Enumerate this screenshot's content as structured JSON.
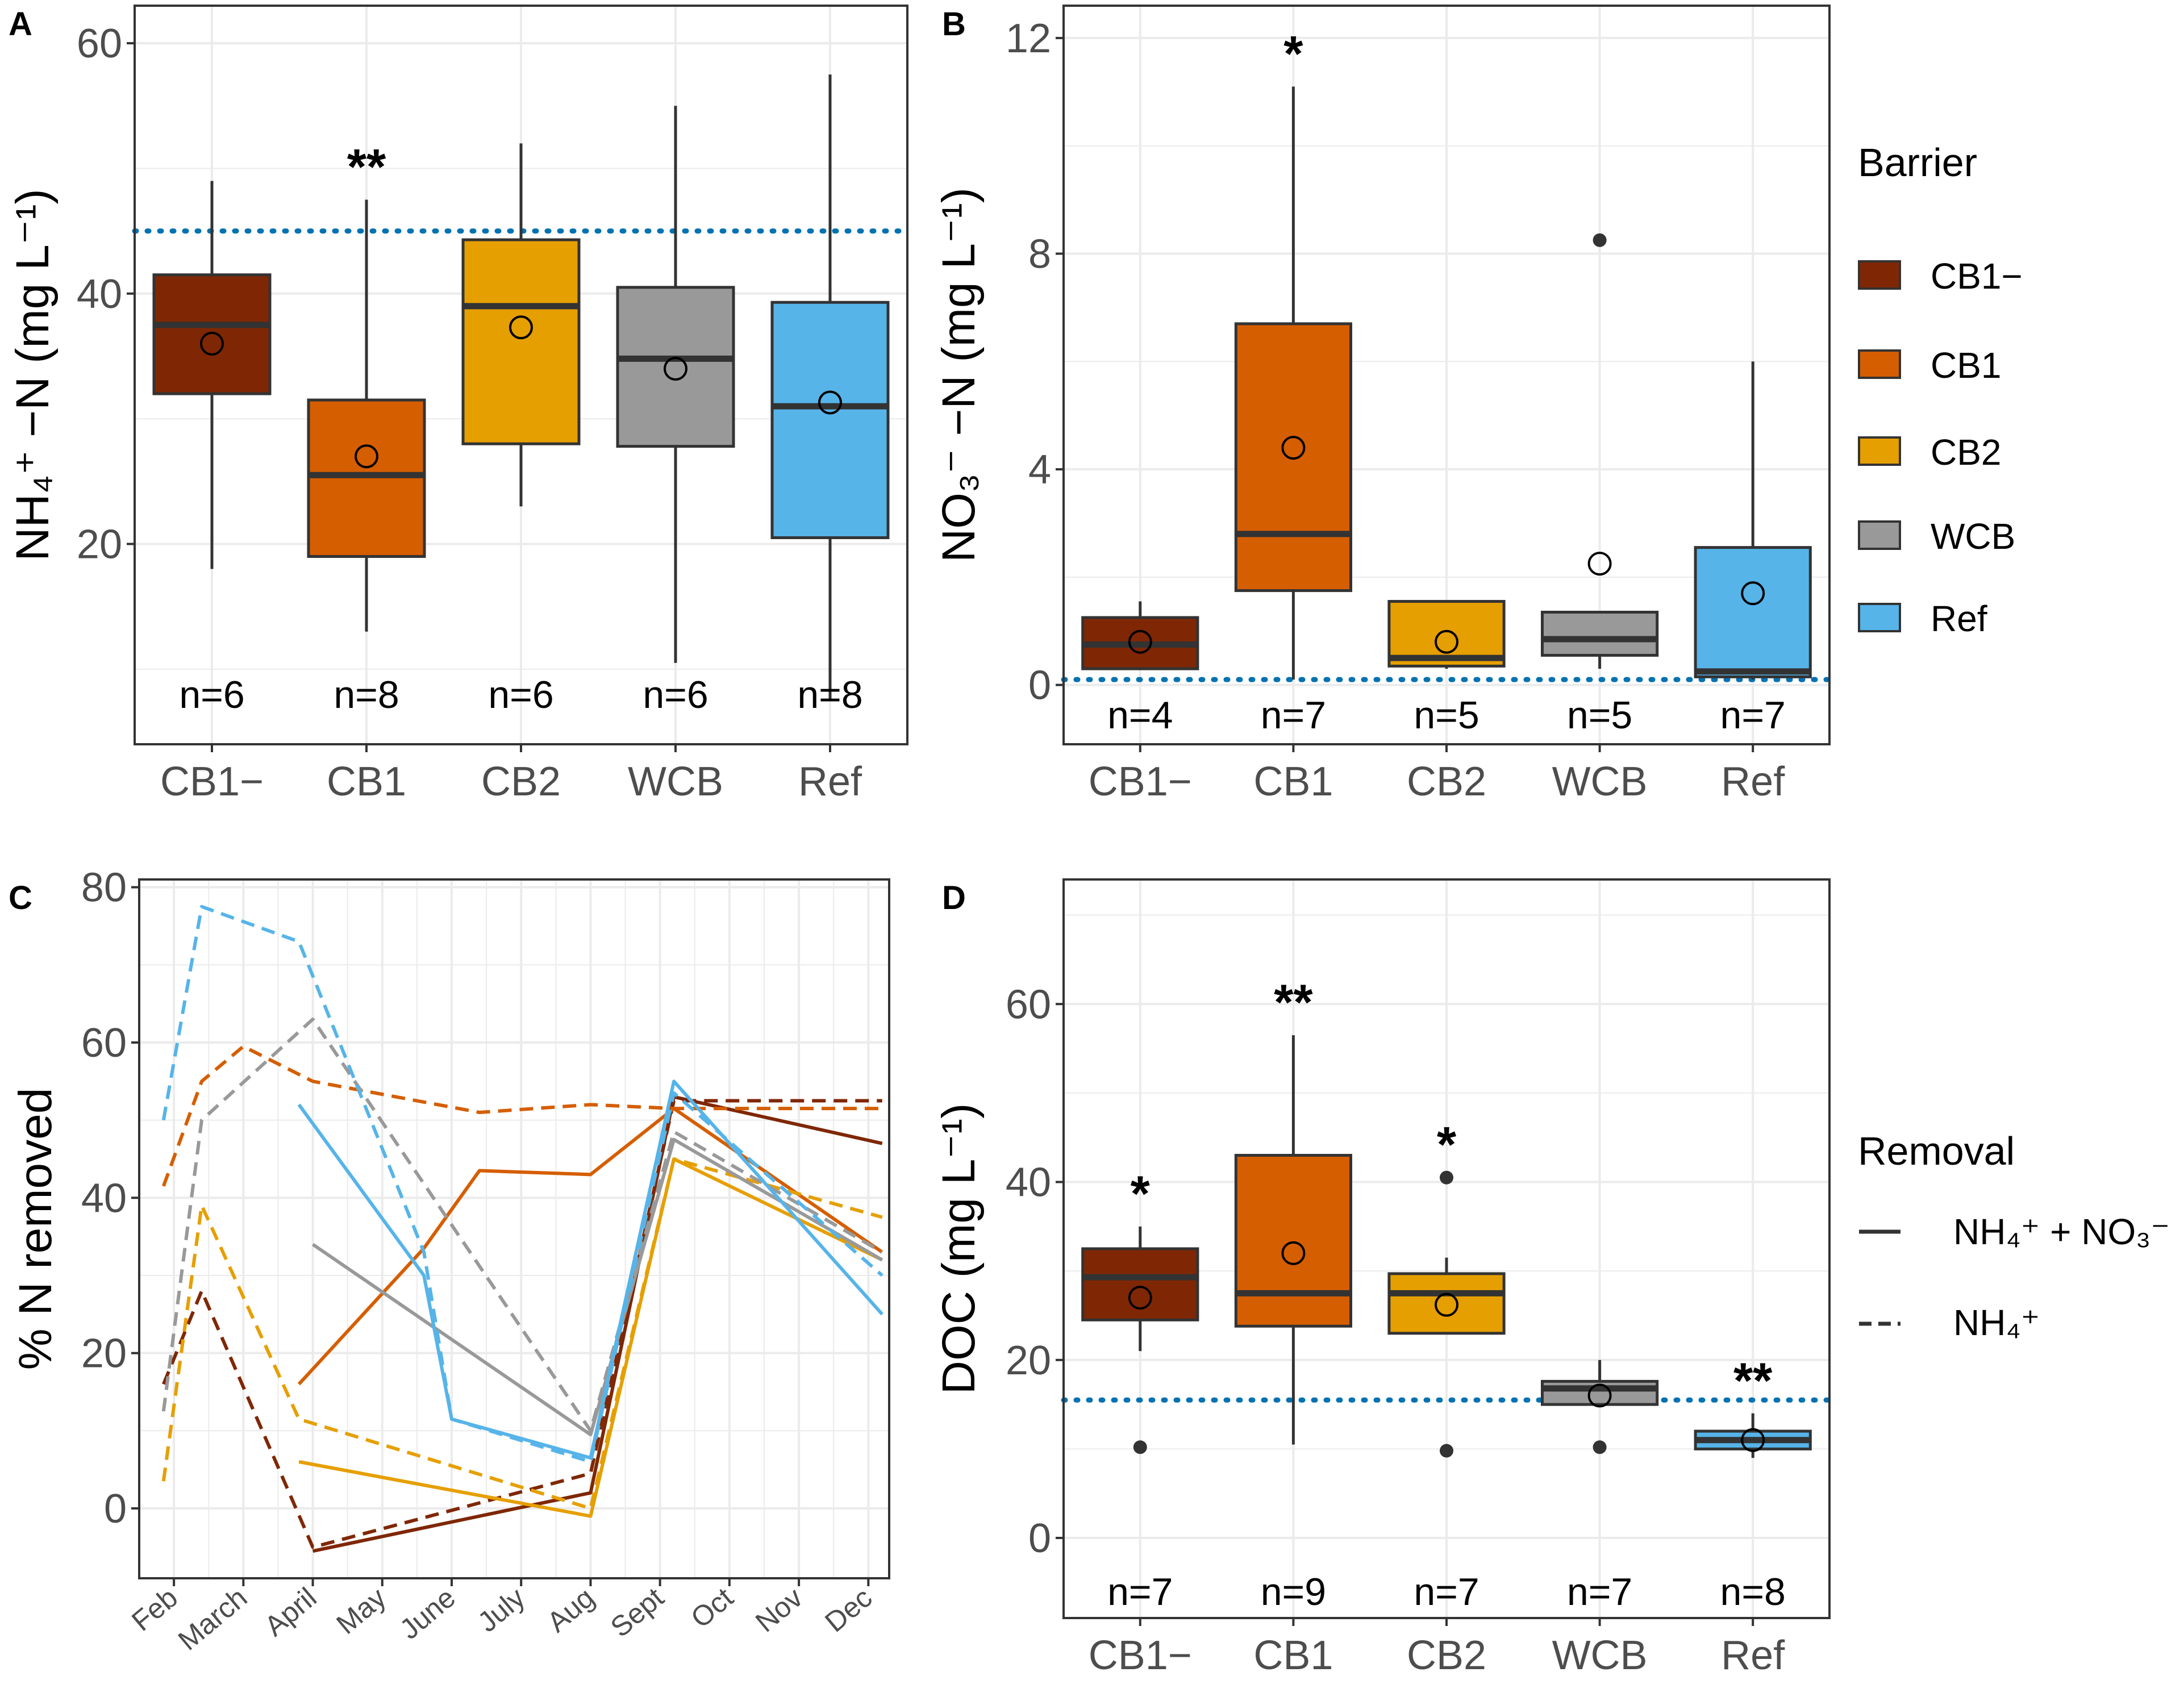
{
  "colors": {
    "CB1-": "#7f2704",
    "CB1": "#d55e00",
    "CB2": "#e69f00",
    "WCB": "#999999",
    "Ref": "#56b4e9",
    "reference_line": "#0072b2",
    "box_outline": "#333333",
    "grid": "#ebebeb"
  },
  "legend_barrier": {
    "title": "Barrier",
    "items": [
      "CB1−",
      "CB1",
      "CB2",
      "WCB",
      "Ref"
    ]
  },
  "legend_removal": {
    "title": "Removal",
    "items": [
      {
        "label": "NH₄⁺ + NO₃⁻",
        "linetype": "solid"
      },
      {
        "label": "NH₄⁺",
        "linetype": "dashed"
      }
    ]
  },
  "chart_data": [
    {
      "panel": "A",
      "type": "boxplot",
      "ylabel": "NH₄⁺ −N (mg L⁻¹)",
      "ylim": [
        4,
        63
      ],
      "yticks": [
        20,
        40,
        60
      ],
      "categories": [
        "CB1−",
        "CB1",
        "CB2",
        "WCB",
        "Ref"
      ],
      "series_keys": [
        "CB1-",
        "CB1",
        "CB2",
        "WCB",
        "Ref"
      ],
      "boxes": [
        {
          "low": 18,
          "q1": 32,
          "median": 37.5,
          "q3": 41.5,
          "high": 49,
          "mean": 36,
          "outliers": []
        },
        {
          "low": 13,
          "q1": 19,
          "median": 25.5,
          "q3": 31.5,
          "high": 47.5,
          "mean": 27,
          "outliers": []
        },
        {
          "low": 23,
          "q1": 28,
          "median": 39,
          "q3": 44.3,
          "high": 52,
          "mean": 37.3,
          "outliers": []
        },
        {
          "low": 10.5,
          "q1": 27.8,
          "median": 34.8,
          "q3": 40.5,
          "high": 55,
          "mean": 34,
          "outliers": []
        },
        {
          "low": 7.5,
          "q1": 20.5,
          "median": 31,
          "q3": 39.3,
          "high": 57.5,
          "mean": 31.3,
          "outliers": []
        }
      ],
      "n_labels": [
        "n=6",
        "n=8",
        "n=6",
        "n=6",
        "n=8"
      ],
      "n_label_y": 8,
      "significance": [
        "",
        "**",
        "",
        "",
        ""
      ],
      "hline": 45
    },
    {
      "panel": "B",
      "type": "boxplot",
      "ylabel": "NO₃⁻ −N (mg L⁻¹)",
      "ylim": [
        -1.1,
        12.6
      ],
      "yticks": [
        0,
        4,
        8,
        12
      ],
      "categories": [
        "CB1−",
        "CB1",
        "CB2",
        "WCB",
        "Ref"
      ],
      "series_keys": [
        "CB1-",
        "CB1",
        "CB2",
        "WCB",
        "Ref"
      ],
      "boxes": [
        {
          "low": 0.3,
          "q1": 0.3,
          "median": 0.75,
          "q3": 1.25,
          "high": 1.55,
          "mean": 0.8,
          "outliers": []
        },
        {
          "low": 0.1,
          "q1": 1.75,
          "median": 2.8,
          "q3": 6.7,
          "high": 11.1,
          "mean": 4.4,
          "outliers": []
        },
        {
          "low": 0.3,
          "q1": 0.35,
          "median": 0.5,
          "q3": 1.55,
          "high": 1.55,
          "mean": 0.8,
          "outliers": []
        },
        {
          "low": 0.3,
          "q1": 0.55,
          "median": 0.85,
          "q3": 1.35,
          "high": 1.35,
          "mean": 2.25,
          "outliers": [
            8.25
          ]
        },
        {
          "low": 0.1,
          "q1": 0.15,
          "median": 0.25,
          "q3": 2.55,
          "high": 6.0,
          "mean": 1.7,
          "outliers": []
        }
      ],
      "n_labels": [
        "n=4",
        "n=7",
        "n=5",
        "n=5",
        "n=7"
      ],
      "n_label_y": -0.55,
      "significance": [
        "",
        "*",
        "",
        "",
        ""
      ],
      "hline": 0.1
    },
    {
      "panel": "C",
      "type": "line",
      "ylabel": "% N removed",
      "ylim": [
        -9,
        81
      ],
      "yticks": [
        0,
        20,
        40,
        60,
        80
      ],
      "x": [
        1,
        2,
        3,
        4,
        5,
        6,
        7,
        8,
        9,
        10,
        11
      ],
      "xlim": [
        0.5,
        11.3
      ],
      "xtick_labels": [
        "Feb",
        "March",
        "April",
        "May",
        "June",
        "July",
        "Aug",
        "Sept",
        "Oct",
        "Nov",
        "Dec"
      ],
      "series": [
        {
          "name": "CB1−",
          "key": "CB1-",
          "removal": "NH₄⁺ + NO₃⁻",
          "x": [
            3,
            7,
            8.2,
            11.2
          ],
          "y": [
            -5.5,
            2,
            53,
            47
          ]
        },
        {
          "name": "CB1−",
          "key": "CB1-",
          "removal": "NH₄⁺",
          "x": [
            0.85,
            1.4,
            3,
            7,
            8.2,
            11.2
          ],
          "y": [
            16,
            28,
            -5,
            4.5,
            52.5,
            52.5
          ]
        },
        {
          "name": "CB1",
          "key": "CB1",
          "removal": "NH₄⁺ + NO₃⁻",
          "x": [
            2.8,
            4.6,
            5.4,
            7,
            8.2,
            11.2
          ],
          "y": [
            16,
            33.5,
            43.5,
            43,
            51.5,
            33
          ]
        },
        {
          "name": "CB1",
          "key": "CB1",
          "removal": "NH₄⁺",
          "x": [
            0.85,
            1.4,
            2.0,
            3,
            5.4,
            7,
            8.2,
            11.2
          ],
          "y": [
            41.5,
            55,
            59.5,
            55,
            51,
            52,
            51.5,
            51.5
          ]
        },
        {
          "name": "CB2",
          "key": "CB2",
          "removal": "NH₄⁺ + NO₃⁻",
          "x": [
            2.8,
            7,
            8.2,
            11.2
          ],
          "y": [
            6,
            -1,
            45,
            32
          ]
        },
        {
          "name": "CB2",
          "key": "CB2",
          "removal": "NH₄⁺",
          "x": [
            0.85,
            1.4,
            2.8,
            7,
            8.2,
            11.2
          ],
          "y": [
            3.5,
            39,
            11.5,
            0,
            45,
            37.5
          ]
        },
        {
          "name": "WCB",
          "key": "WCB",
          "removal": "NH₄⁺ + NO₃⁻",
          "x": [
            3,
            7,
            8.2,
            11.2
          ],
          "y": [
            34,
            9.5,
            47.5,
            32
          ]
        },
        {
          "name": "WCB",
          "key": "WCB",
          "removal": "NH₄⁺",
          "x": [
            0.85,
            1.4,
            3,
            7,
            8.2,
            11.2
          ],
          "y": [
            12.5,
            50,
            63,
            10,
            48.5,
            33
          ]
        },
        {
          "name": "Ref",
          "key": "Ref",
          "removal": "NH₄⁺ + NO₃⁻",
          "x": [
            2.8,
            4.6,
            5,
            7,
            8.2,
            11.2
          ],
          "y": [
            52,
            30,
            11.5,
            6.5,
            55,
            25
          ]
        },
        {
          "name": "Ref",
          "key": "Ref",
          "removal": "NH₄⁺",
          "x": [
            0.85,
            1.4,
            2.8,
            4.6,
            5,
            7,
            8.2,
            11.2
          ],
          "y": [
            50,
            77.5,
            73,
            33,
            11.5,
            6,
            53.5,
            30
          ]
        }
      ]
    },
    {
      "panel": "D",
      "type": "boxplot",
      "ylabel": "DOC (mg L⁻¹)",
      "ylim": [
        -9,
        74
      ],
      "yticks": [
        0,
        20,
        40,
        60
      ],
      "categories": [
        "CB1−",
        "CB1",
        "CB2",
        "WCB",
        "Ref"
      ],
      "series_keys": [
        "CB1-",
        "CB1",
        "CB2",
        "WCB",
        "Ref"
      ],
      "boxes": [
        {
          "low": 21,
          "q1": 24.5,
          "median": 29.3,
          "q3": 32.5,
          "high": 35,
          "mean": 27,
          "outliers": [
            10.2
          ]
        },
        {
          "low": 10.5,
          "q1": 23.8,
          "median": 27.5,
          "q3": 43,
          "high": 56.5,
          "mean": 32,
          "outliers": []
        },
        {
          "low": 23,
          "q1": 23,
          "median": 27.5,
          "q3": 29.7,
          "high": 31.5,
          "mean": 26.2,
          "outliers": [
            40.5,
            9.8
          ]
        },
        {
          "low": 15,
          "q1": 15,
          "median": 16.8,
          "q3": 17.6,
          "high": 20,
          "mean": 16,
          "outliers": [
            10.2
          ]
        },
        {
          "low": 9,
          "q1": 10,
          "median": 11,
          "q3": 12,
          "high": 14,
          "mean": 11,
          "outliers": []
        }
      ],
      "n_labels": [
        "n=7",
        "n=9",
        "n=7",
        "n=7",
        "n=8"
      ],
      "n_label_y": -6,
      "significance": [
        "*",
        "**",
        "*",
        "",
        "**"
      ],
      "hline": 15.5
    }
  ]
}
